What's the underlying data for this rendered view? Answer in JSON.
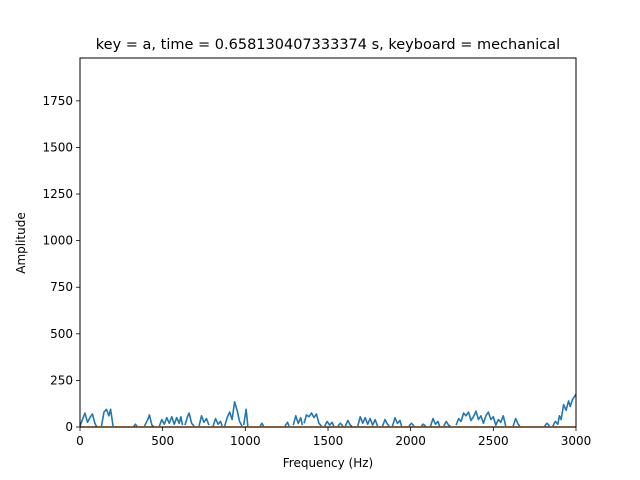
{
  "chart_data": {
    "type": "line",
    "title": "key = a, time = 0.658130407333374 s, keyboard = mechanical",
    "xlabel": "Frequency (Hz)",
    "ylabel": "Amplitude",
    "xlim": [
      0,
      3000
    ],
    "ylim": [
      0,
      1980
    ],
    "xticks": [
      0,
      500,
      1000,
      1500,
      2000,
      2500,
      3000
    ],
    "yticks": [
      0,
      250,
      500,
      750,
      1000,
      1250,
      1500,
      1750
    ],
    "grid": false,
    "legend": "none",
    "series": [
      {
        "color": "#1f77b4",
        "segments": [
          [
            [
              0,
              5
            ],
            [
              15,
              40
            ],
            [
              30,
              75
            ],
            [
              45,
              25
            ],
            [
              60,
              50
            ],
            [
              75,
              70
            ],
            [
              90,
              20
            ],
            [
              100,
              3
            ]
          ],
          [
            [
              130,
              5
            ],
            [
              145,
              80
            ],
            [
              160,
              95
            ],
            [
              175,
              60
            ],
            [
              185,
              95
            ],
            [
              200,
              5
            ]
          ],
          [
            [
              325,
              3
            ],
            [
              335,
              15
            ],
            [
              345,
              3
            ]
          ],
          [
            [
              390,
              5
            ],
            [
              410,
              40
            ],
            [
              420,
              65
            ],
            [
              435,
              10
            ],
            [
              445,
              3
            ]
          ],
          [
            [
              480,
              5
            ],
            [
              495,
              40
            ],
            [
              510,
              15
            ],
            [
              525,
              50
            ],
            [
              540,
              20
            ],
            [
              555,
              55
            ],
            [
              570,
              15
            ],
            [
              585,
              50
            ],
            [
              600,
              20
            ],
            [
              610,
              55
            ],
            [
              620,
              10
            ]
          ],
          [
            [
              635,
              10
            ],
            [
              650,
              55
            ],
            [
              660,
              75
            ],
            [
              675,
              20
            ],
            [
              690,
              5
            ]
          ],
          [
            [
              720,
              5
            ],
            [
              735,
              60
            ],
            [
              750,
              25
            ],
            [
              765,
              45
            ],
            [
              780,
              10
            ]
          ],
          [
            [
              805,
              5
            ],
            [
              820,
              45
            ],
            [
              835,
              15
            ],
            [
              850,
              30
            ],
            [
              860,
              5
            ]
          ],
          [
            [
              875,
              5
            ],
            [
              890,
              50
            ],
            [
              905,
              80
            ],
            [
              920,
              40
            ],
            [
              935,
              135
            ],
            [
              950,
              90
            ],
            [
              965,
              30
            ],
            [
              980,
              5
            ]
          ],
          [
            [
              990,
              10
            ],
            [
              1005,
              95
            ],
            [
              1015,
              5
            ]
          ],
          [
            [
              1090,
              5
            ],
            [
              1100,
              20
            ],
            [
              1110,
              5
            ]
          ],
          [
            [
              1240,
              5
            ],
            [
              1255,
              25
            ],
            [
              1265,
              5
            ]
          ],
          [
            [
              1290,
              10
            ],
            [
              1305,
              60
            ],
            [
              1320,
              20
            ],
            [
              1335,
              50
            ],
            [
              1345,
              10
            ]
          ],
          [
            [
              1355,
              20
            ],
            [
              1370,
              65
            ],
            [
              1385,
              55
            ],
            [
              1400,
              75
            ],
            [
              1415,
              50
            ],
            [
              1430,
              70
            ],
            [
              1445,
              20
            ],
            [
              1460,
              5
            ]
          ],
          [
            [
              1480,
              5
            ],
            [
              1495,
              30
            ],
            [
              1510,
              10
            ],
            [
              1525,
              25
            ],
            [
              1535,
              5
            ]
          ],
          [
            [
              1560,
              5
            ],
            [
              1575,
              20
            ],
            [
              1590,
              5
            ]
          ],
          [
            [
              1605,
              5
            ],
            [
              1620,
              35
            ],
            [
              1635,
              10
            ],
            [
              1645,
              5
            ]
          ],
          [
            [
              1680,
              5
            ],
            [
              1695,
              55
            ],
            [
              1710,
              20
            ],
            [
              1725,
              50
            ],
            [
              1740,
              15
            ],
            [
              1755,
              45
            ],
            [
              1770,
              10
            ],
            [
              1785,
              40
            ],
            [
              1800,
              5
            ]
          ],
          [
            [
              1830,
              5
            ],
            [
              1845,
              40
            ],
            [
              1860,
              15
            ],
            [
              1870,
              5
            ]
          ],
          [
            [
              1890,
              5
            ],
            [
              1905,
              50
            ],
            [
              1920,
              20
            ],
            [
              1935,
              35
            ],
            [
              1945,
              5
            ]
          ],
          [
            [
              1990,
              5
            ],
            [
              2005,
              20
            ],
            [
              2020,
              5
            ]
          ],
          [
            [
              2065,
              5
            ],
            [
              2075,
              15
            ],
            [
              2090,
              5
            ]
          ],
          [
            [
              2120,
              5
            ],
            [
              2135,
              45
            ],
            [
              2150,
              15
            ],
            [
              2165,
              30
            ],
            [
              2175,
              5
            ]
          ],
          [
            [
              2200,
              5
            ],
            [
              2215,
              30
            ],
            [
              2230,
              10
            ],
            [
              2240,
              5
            ]
          ],
          [
            [
              2275,
              10
            ],
            [
              2290,
              45
            ],
            [
              2305,
              30
            ],
            [
              2320,
              75
            ],
            [
              2335,
              60
            ],
            [
              2350,
              80
            ],
            [
              2365,
              35
            ],
            [
              2380,
              55
            ],
            [
              2395,
              85
            ],
            [
              2410,
              40
            ],
            [
              2425,
              60
            ],
            [
              2440,
              20
            ],
            [
              2455,
              60
            ],
            [
              2470,
              80
            ],
            [
              2485,
              40
            ],
            [
              2500,
              55
            ],
            [
              2515,
              10
            ],
            [
              2530,
              40
            ],
            [
              2545,
              25
            ],
            [
              2560,
              60
            ],
            [
              2575,
              5
            ]
          ],
          [
            [
              2620,
              5
            ],
            [
              2635,
              45
            ],
            [
              2650,
              15
            ],
            [
              2660,
              5
            ]
          ],
          [
            [
              2810,
              5
            ],
            [
              2825,
              20
            ],
            [
              2840,
              5
            ]
          ],
          [
            [
              2860,
              5
            ],
            [
              2875,
              30
            ],
            [
              2890,
              15
            ],
            [
              2900,
              60
            ],
            [
              2910,
              40
            ],
            [
              2925,
              120
            ],
            [
              2940,
              90
            ],
            [
              2955,
              140
            ],
            [
              2965,
              110
            ],
            [
              2980,
              150
            ],
            [
              3000,
              175
            ]
          ]
        ]
      },
      {
        "color": "#ff7f0e",
        "segments": [
          [
            [
              0,
              0
            ],
            [
              3000,
              0
            ]
          ]
        ]
      }
    ]
  }
}
